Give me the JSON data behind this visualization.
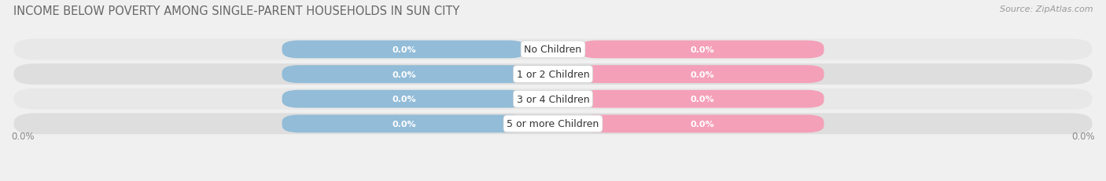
{
  "title": "INCOME BELOW POVERTY AMONG SINGLE-PARENT HOUSEHOLDS IN SUN CITY",
  "source": "Source: ZipAtlas.com",
  "categories": [
    "No Children",
    "1 or 2 Children",
    "3 or 4 Children",
    "5 or more Children"
  ],
  "single_father_values": [
    0.0,
    0.0,
    0.0,
    0.0
  ],
  "single_mother_values": [
    0.0,
    0.0,
    0.0,
    0.0
  ],
  "father_color": "#92bcd8",
  "mother_color": "#f4a0b8",
  "background_color": "#f0f0f0",
  "row_bg_color": "#e0e0e0",
  "row_bg_color2": "#d8d8d8",
  "title_fontsize": 10.5,
  "source_fontsize": 8,
  "legend_fontsize": 9,
  "tick_fontsize": 8.5,
  "value_fontsize": 8,
  "category_fontsize": 9,
  "axis_label_left": "0.0%",
  "axis_label_right": "0.0%"
}
